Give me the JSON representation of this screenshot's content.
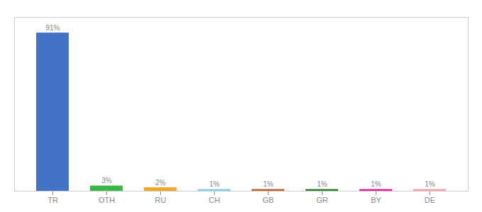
{
  "chart_data": {
    "type": "bar",
    "categories": [
      "TR",
      "OTH",
      "RU",
      "CH",
      "GB",
      "GR",
      "BY",
      "DE"
    ],
    "values": [
      91,
      3,
      2,
      1,
      1,
      1,
      1,
      1
    ],
    "value_labels": [
      "91%",
      "3%",
      "2%",
      "1%",
      "1%",
      "1%",
      "1%",
      "1%"
    ],
    "colors": [
      "#4472C4",
      "#3CB54A",
      "#F5A623",
      "#87CEEB",
      "#C06030",
      "#2E7D32",
      "#E91E8C",
      "#F4A0B0"
    ],
    "ylim": [
      0,
      100
    ],
    "data_labels": true,
    "tick_labels": "x"
  }
}
